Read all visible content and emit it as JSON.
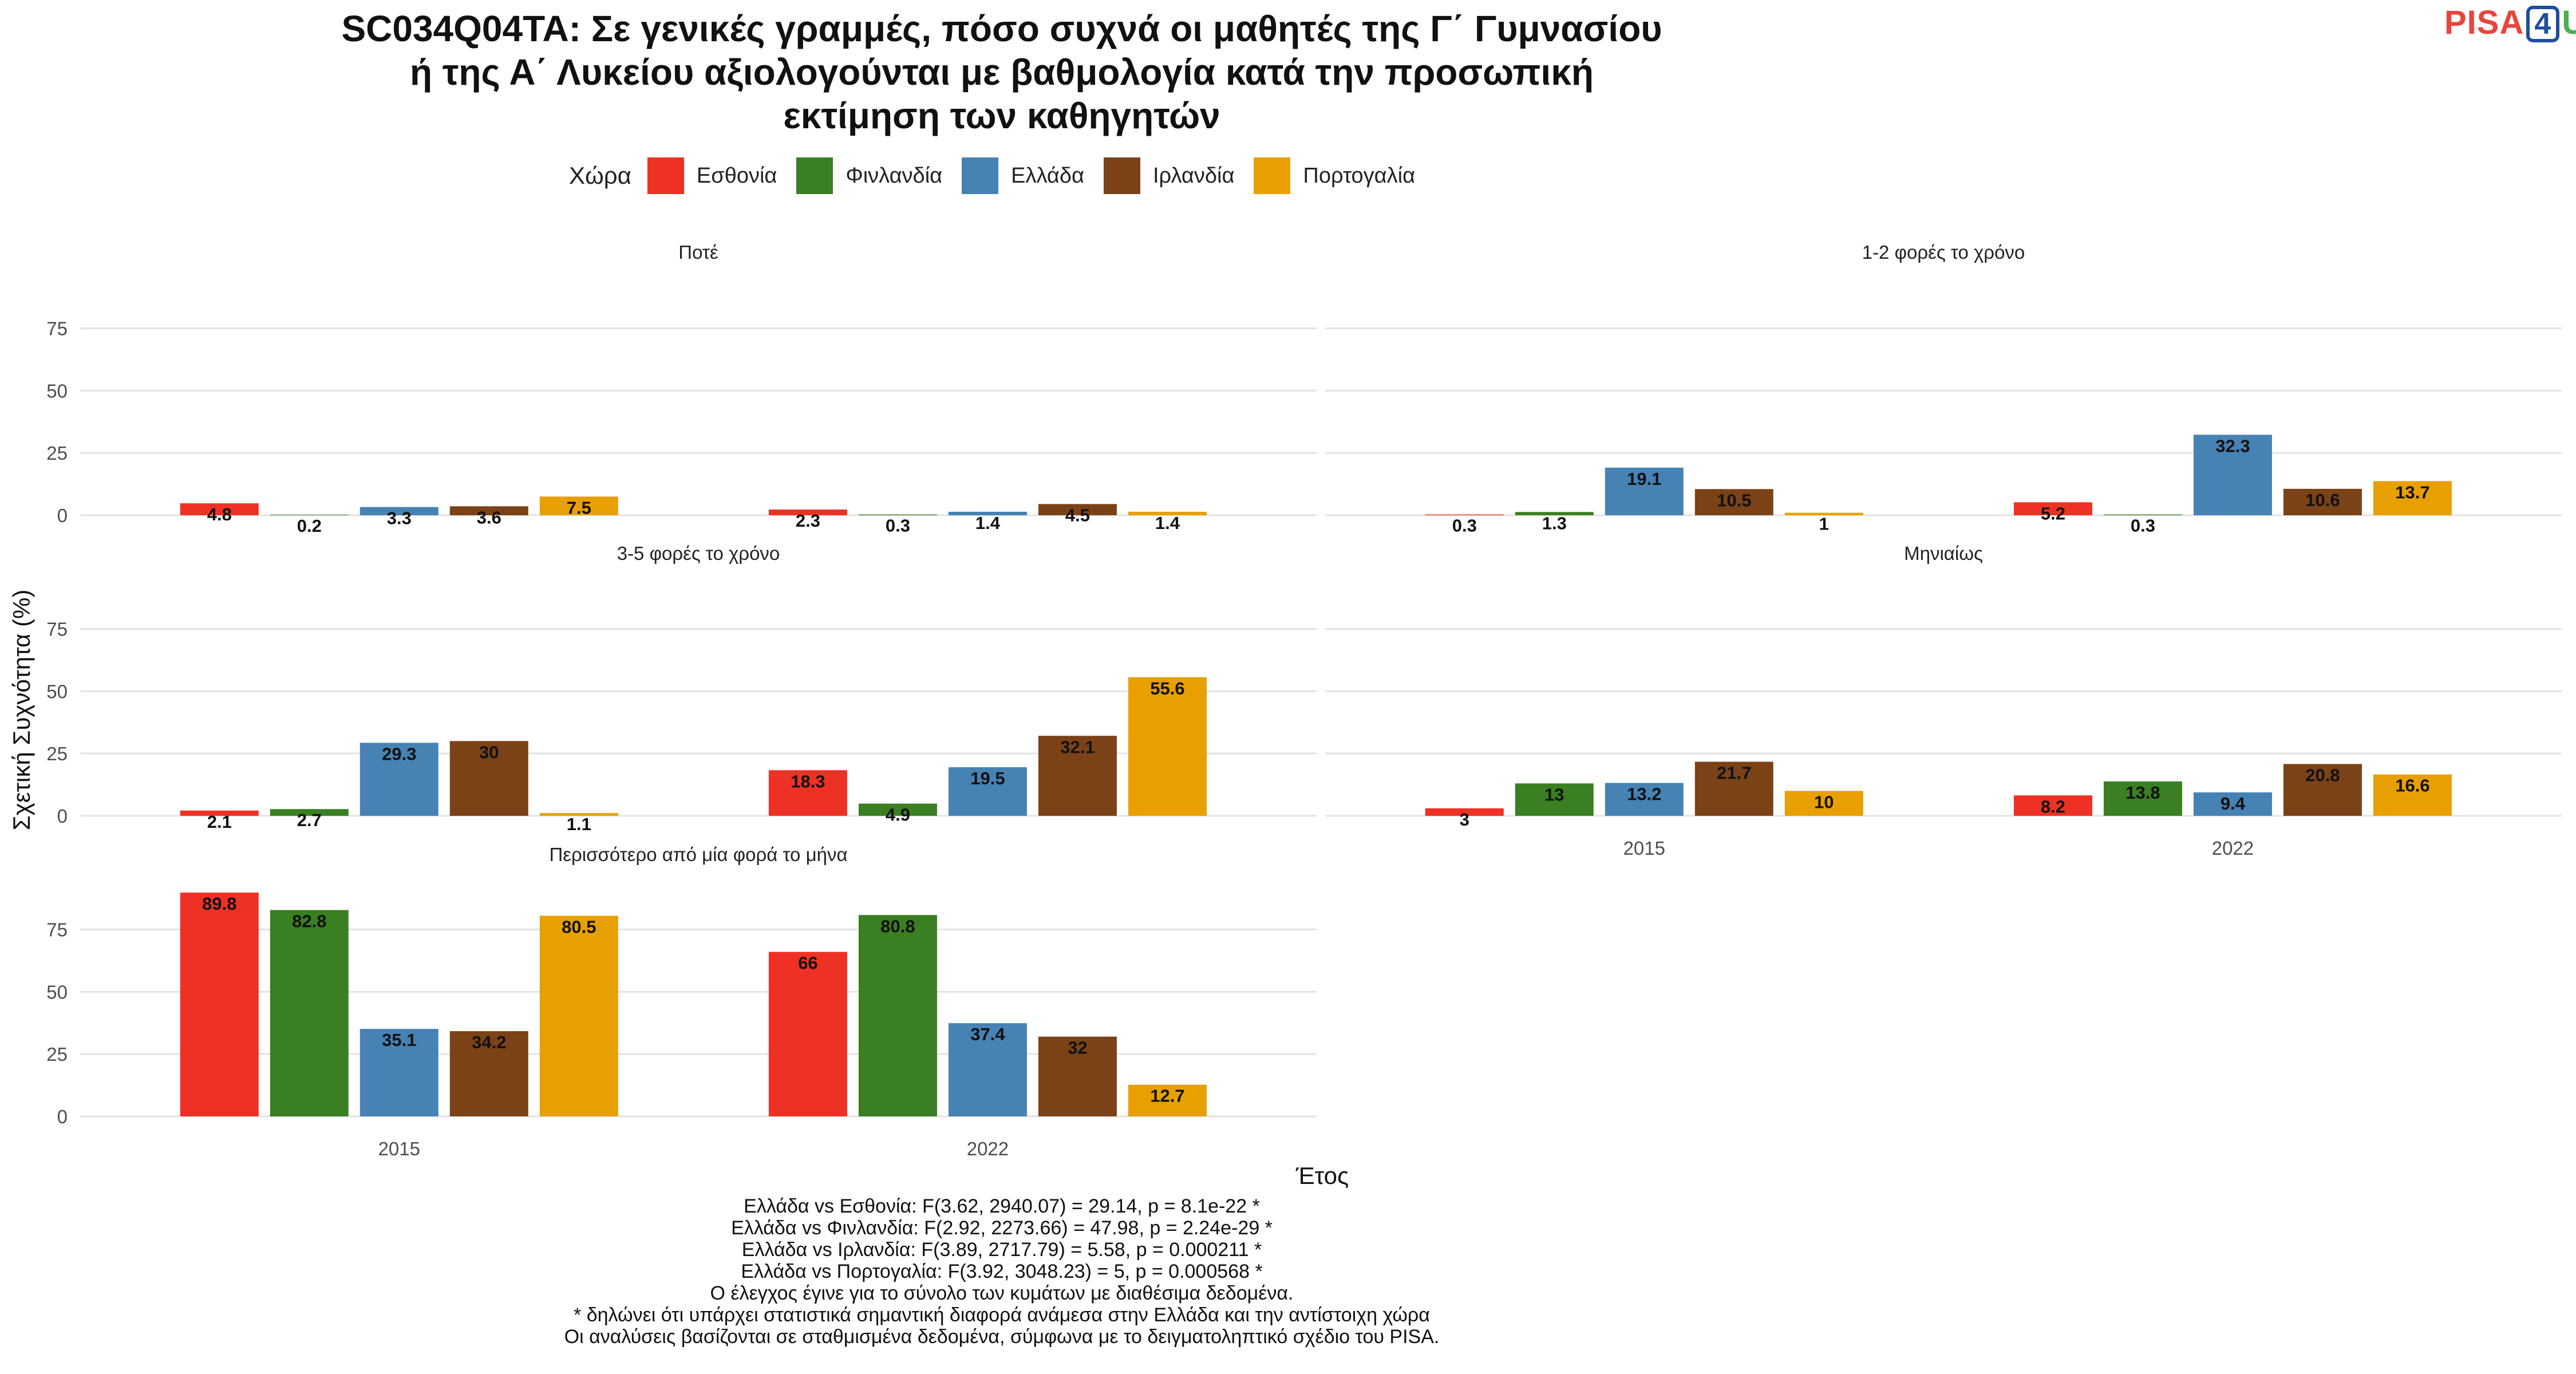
{
  "title_lines": [
    "SC034Q04TA: Σε γενικές γραμμές, πόσο συχνά οι μαθητές της Γ΄ Γυμνασίου",
    "ή της Α΄ Λυκείου αξιολογούνται με βαθμολογία κατά την προσωπική",
    "εκτίμηση των καθηγητών"
  ],
  "logo": {
    "left": "PISA",
    "number": "4",
    "right": "U"
  },
  "legend": {
    "title": "Χώρα",
    "items": [
      {
        "label": "Εσθονία",
        "color": "#EE3124"
      },
      {
        "label": "Φινλανδία",
        "color": "#3A7F22"
      },
      {
        "label": "Ελλάδα",
        "color": "#4682B4"
      },
      {
        "label": "Ιρλανδία",
        "color": "#7B4217"
      },
      {
        "label": "Πορτογαλία",
        "color": "#E8A000"
      }
    ]
  },
  "chart_data": {
    "type": "bar",
    "xlabel": "Έτος",
    "ylabel": "Σχετική Συχνότητα (%)",
    "ylim": [
      0,
      85
    ],
    "yticks": [
      0,
      25,
      50,
      75
    ],
    "categories": [
      "2015",
      "2022"
    ],
    "series_names": [
      "Εσθονία",
      "Φινλανδία",
      "Ελλάδα",
      "Ιρλανδία",
      "Πορτογαλία"
    ],
    "panels": [
      {
        "title": "Ποτέ",
        "values": [
          [
            4.8,
            0.2,
            3.3,
            3.6,
            7.5
          ],
          [
            2.3,
            0.3,
            1.4,
            4.5,
            1.4
          ]
        ]
      },
      {
        "title": "1-2 φορές το χρόνο",
        "values": [
          [
            0.3,
            1.3,
            19.1,
            10.5,
            1
          ],
          [
            5.2,
            0.3,
            32.3,
            10.6,
            13.7
          ]
        ]
      },
      {
        "title": "3-5 φορές το χρόνο",
        "values": [
          [
            2.1,
            2.7,
            29.3,
            30,
            1.1
          ],
          [
            18.3,
            4.9,
            19.5,
            32.1,
            55.6
          ]
        ]
      },
      {
        "title": "Μηνιαίως",
        "values": [
          [
            3,
            13,
            13.2,
            21.7,
            10
          ],
          [
            8.2,
            13.8,
            9.4,
            20.8,
            16.6
          ]
        ]
      },
      {
        "title": "Περισσότερο από μία φορά το μήνα",
        "values": [
          [
            89.8,
            82.8,
            35.1,
            34.2,
            80.5
          ],
          [
            66,
            80.8,
            37.4,
            32,
            12.7
          ]
        ]
      }
    ]
  },
  "footer_lines": [
    "Ελλάδα vs Εσθονία: F(3.62, 2940.07) = 29.14, p = 8.1e-22 *",
    "Ελλάδα vs Φινλανδία: F(2.92, 2273.66) = 47.98, p = 2.24e-29 *",
    "Ελλάδα vs Ιρλανδία: F(3.89, 2717.79) = 5.58, p = 0.000211 *",
    "Ελλάδα vs Πορτογαλία: F(3.92, 3048.23) = 5, p = 0.000568 *",
    "Ο έλεγχος έγινε για το σύνολο των κυμάτων με διαθέσιμα δεδομένα.",
    "* δηλώνει ότι υπάρχει στατιστικά σημαντική διαφορά ανάμεσα στην Ελλάδα και την αντίστοιχη χώρα",
    "Οι αναλύσεις βασίζονται σε σταθμισμένα δεδομένα, σύμφωνα με το δειγματοληπτικό σχέδιο του PISA."
  ]
}
